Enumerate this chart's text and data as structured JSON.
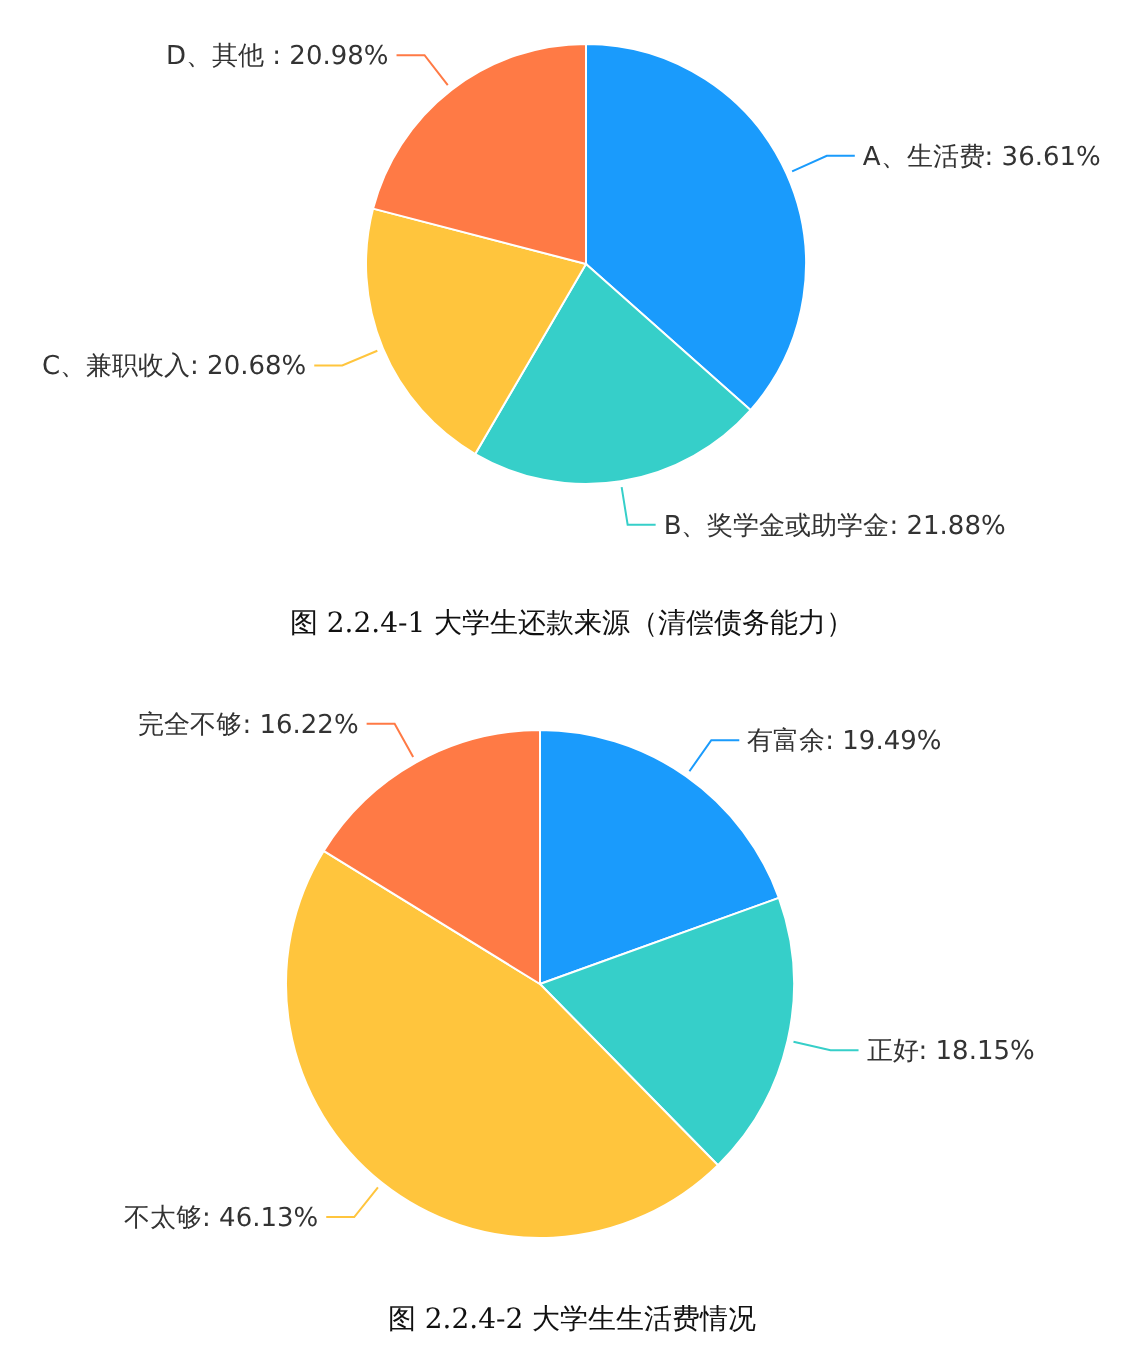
{
  "chart_data": [
    {
      "type": "pie",
      "title": "图 2.2.4-1 大学生还款来源（清偿债务能力）",
      "categories": [
        "A、生活费",
        "B、奖学金或助学金",
        "C、兼职收入",
        "D、其他 "
      ],
      "values": [
        36.61,
        21.88,
        20.68,
        20.98
      ],
      "value_labels": [
        "36.61%",
        "21.88%",
        "20.68%",
        "20.98%"
      ],
      "colors": [
        "#1a9bfc",
        "#36cfc9",
        "#ffc53d",
        "#ff7a45"
      ]
    },
    {
      "type": "pie",
      "title": "图 2.2.4-2 大学生生活费情况",
      "categories": [
        "有富余",
        "正好",
        "不太够",
        "完全不够"
      ],
      "values": [
        19.49,
        18.15,
        46.13,
        16.22
      ],
      "value_labels": [
        "19.49%",
        "18.15%",
        "46.13%",
        "16.22%"
      ],
      "colors": [
        "#1a9bfc",
        "#36cfc9",
        "#ffc53d",
        "#ff7a45"
      ]
    }
  ]
}
